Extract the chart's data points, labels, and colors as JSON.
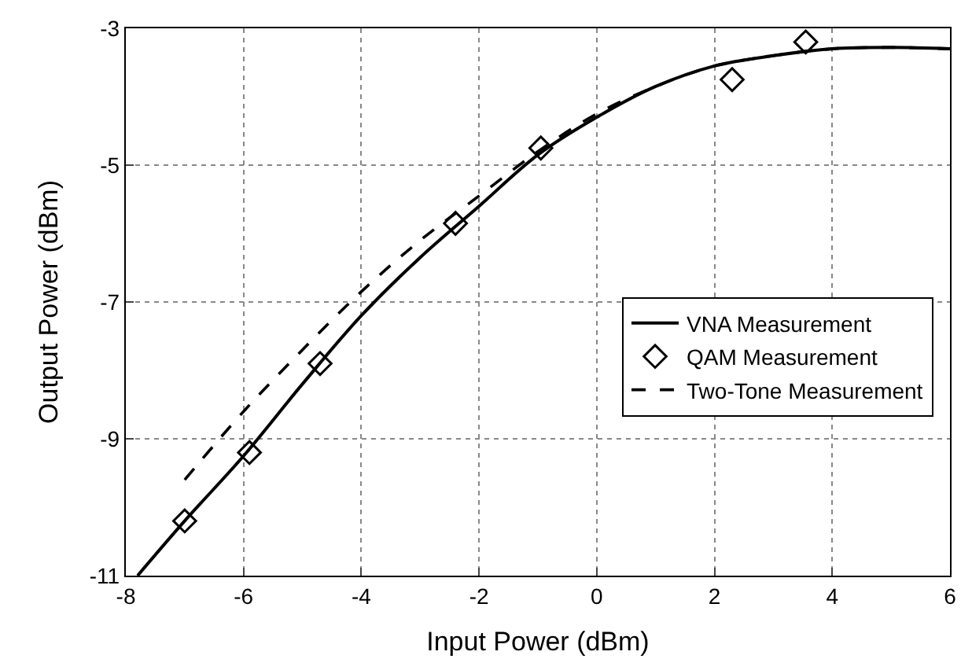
{
  "chart_data": {
    "type": "line",
    "xlabel": "Input Power (dBm)",
    "ylabel": "Output Power (dBm)",
    "xlim": [
      -8,
      6
    ],
    "xticks": [
      -8,
      -6,
      -4,
      -2,
      0,
      2,
      4,
      6
    ],
    "ylim": [
      -11,
      -3
    ],
    "yticks": [
      -11,
      -9,
      -7,
      -5,
      -3
    ],
    "grid": true,
    "legend": "right",
    "series": [
      {
        "name": "VNA Measurement",
        "color": "#000000",
        "line_style": "solid",
        "marker": "none",
        "x": [
          -7.8,
          -7,
          -6,
          -5,
          -4,
          -3,
          -2,
          -1,
          0,
          1,
          2,
          3,
          4,
          5,
          6
        ],
        "values": [
          -11,
          -10.2,
          -9.25,
          -8.2,
          -7.2,
          -6.35,
          -5.6,
          -4.85,
          -4.3,
          -3.85,
          -3.55,
          -3.4,
          -3.3,
          -3.28,
          -3.3
        ]
      },
      {
        "name": "QAM Measurement",
        "color": "#000000",
        "type": "scatter",
        "marker": "diamond",
        "x": [
          -7,
          -5.9,
          -4.7,
          -2.4,
          -0.95,
          2.3,
          3.55
        ],
        "values": [
          -10.2,
          -9.2,
          -7.9,
          -5.85,
          -4.75,
          -3.75,
          -3.2
        ]
      },
      {
        "name": "Two-Tone Measurement",
        "color": "#000000",
        "line_style": "dashed",
        "marker": "none",
        "x": [
          -7,
          -6,
          -5,
          -4,
          -3,
          -2,
          -1,
          0,
          1,
          2,
          3,
          4,
          5,
          6
        ],
        "values": [
          -9.6,
          -8.6,
          -7.7,
          -6.85,
          -6.1,
          -5.45,
          -4.8,
          -4.25,
          -3.85,
          -3.55,
          -3.4,
          -3.3,
          -3.28,
          -3.3
        ]
      }
    ]
  }
}
